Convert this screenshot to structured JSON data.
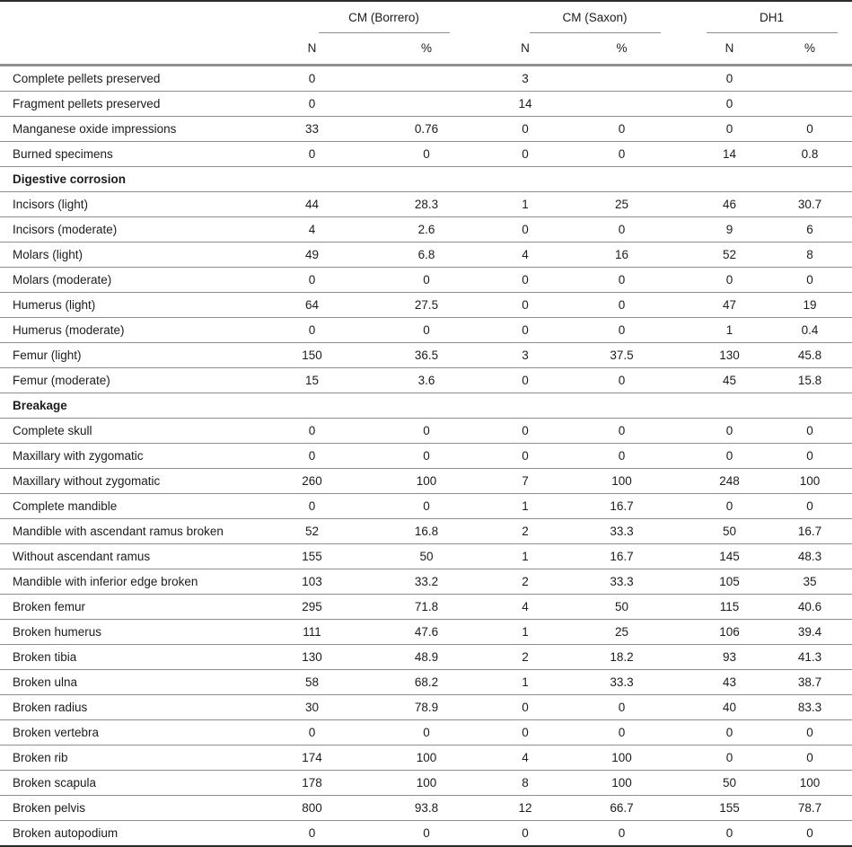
{
  "table": {
    "column_groups": [
      {
        "label": "CM (Borrero)"
      },
      {
        "label": "CM (Saxon)"
      },
      {
        "label": "DH1"
      }
    ],
    "subheaders": {
      "n": "N",
      "pct": "%"
    },
    "rows": [
      {
        "type": "data",
        "label": "Complete pellets preserved",
        "values": [
          "0",
          "",
          "3",
          "",
          "0",
          ""
        ]
      },
      {
        "type": "data",
        "label": "Fragment pellets preserved",
        "values": [
          "0",
          "",
          "14",
          "",
          "0",
          ""
        ]
      },
      {
        "type": "data",
        "label": "Manganese oxide impressions",
        "values": [
          "33",
          "0.76",
          "0",
          "0",
          "0",
          "0"
        ]
      },
      {
        "type": "data",
        "label": "Burned specimens",
        "values": [
          "0",
          "0",
          "0",
          "0",
          "14",
          "0.8"
        ]
      },
      {
        "type": "section",
        "label": "Digestive corrosion"
      },
      {
        "type": "data",
        "label": "Incisors (light)",
        "values": [
          "44",
          "28.3",
          "1",
          "25",
          "46",
          "30.7"
        ]
      },
      {
        "type": "data",
        "label": "Incisors (moderate)",
        "values": [
          "4",
          "2.6",
          "0",
          "0",
          "9",
          "6"
        ]
      },
      {
        "type": "data",
        "label": "Molars (light)",
        "values": [
          "49",
          "6.8",
          "4",
          "16",
          "52",
          "8"
        ]
      },
      {
        "type": "data",
        "label": "Molars (moderate)",
        "values": [
          "0",
          "0",
          "0",
          "0",
          "0",
          "0"
        ]
      },
      {
        "type": "data",
        "label": "Humerus (light)",
        "values": [
          "64",
          "27.5",
          "0",
          "0",
          "47",
          "19"
        ]
      },
      {
        "type": "data",
        "label": "Humerus (moderate)",
        "values": [
          "0",
          "0",
          "0",
          "0",
          "1",
          "0.4"
        ]
      },
      {
        "type": "data",
        "label": "Femur (light)",
        "values": [
          "150",
          "36.5",
          "3",
          "37.5",
          "130",
          "45.8"
        ]
      },
      {
        "type": "data",
        "label": "Femur (moderate)",
        "values": [
          "15",
          "3.6",
          "0",
          "0",
          "45",
          "15.8"
        ]
      },
      {
        "type": "section",
        "label": "Breakage"
      },
      {
        "type": "data",
        "label": "Complete skull",
        "values": [
          "0",
          "0",
          "0",
          "0",
          "0",
          "0"
        ]
      },
      {
        "type": "data",
        "label": "Maxillary with zygomatic",
        "values": [
          "0",
          "0",
          "0",
          "0",
          "0",
          "0"
        ]
      },
      {
        "type": "data",
        "label": "Maxillary without zygomatic",
        "values": [
          "260",
          "100",
          "7",
          "100",
          "248",
          "100"
        ]
      },
      {
        "type": "data",
        "label": "Complete mandible",
        "values": [
          "0",
          "0",
          "1",
          "16.7",
          "0",
          "0"
        ]
      },
      {
        "type": "data",
        "label": "Mandible with ascendant ramus broken",
        "values": [
          "52",
          "16.8",
          "2",
          "33.3",
          "50",
          "16.7"
        ]
      },
      {
        "type": "data",
        "label": "Without ascendant ramus",
        "values": [
          "155",
          "50",
          "1",
          "16.7",
          "145",
          "48.3"
        ]
      },
      {
        "type": "data",
        "label": "Mandible with inferior edge broken",
        "values": [
          "103",
          "33.2",
          "2",
          "33.3",
          "105",
          "35"
        ]
      },
      {
        "type": "data",
        "label": "Broken femur",
        "values": [
          "295",
          "71.8",
          "4",
          "50",
          "115",
          "40.6"
        ]
      },
      {
        "type": "data",
        "label": "Broken humerus",
        "values": [
          "111",
          "47.6",
          "1",
          "25",
          "106",
          "39.4"
        ]
      },
      {
        "type": "data",
        "label": "Broken tibia",
        "values": [
          "130",
          "48.9",
          "2",
          "18.2",
          "93",
          "41.3"
        ]
      },
      {
        "type": "data",
        "label": "Broken ulna",
        "values": [
          "58",
          "68.2",
          "1",
          "33.3",
          "43",
          "38.7"
        ]
      },
      {
        "type": "data",
        "label": "Broken radius",
        "values": [
          "30",
          "78.9",
          "0",
          "0",
          "40",
          "83.3"
        ]
      },
      {
        "type": "data",
        "label": "Broken vertebra",
        "values": [
          "0",
          "0",
          "0",
          "0",
          "0",
          "0"
        ]
      },
      {
        "type": "data",
        "label": "Broken rib",
        "values": [
          "174",
          "100",
          "4",
          "100",
          "0",
          "0"
        ]
      },
      {
        "type": "data",
        "label": "Broken scapula",
        "values": [
          "178",
          "100",
          "8",
          "100",
          "50",
          "100"
        ]
      },
      {
        "type": "data",
        "label": "Broken pelvis",
        "values": [
          "800",
          "93.8",
          "12",
          "66.7",
          "155",
          "78.7"
        ]
      },
      {
        "type": "data",
        "label": "Broken autopodium",
        "values": [
          "0",
          "0",
          "0",
          "0",
          "0",
          "0"
        ]
      }
    ]
  },
  "colors": {
    "ink": "#1c1c1c",
    "line-thin": "#8f8f8f",
    "line-heavy": "#2b2b2b",
    "line-header": "#909090",
    "paper": "#ffffff"
  }
}
